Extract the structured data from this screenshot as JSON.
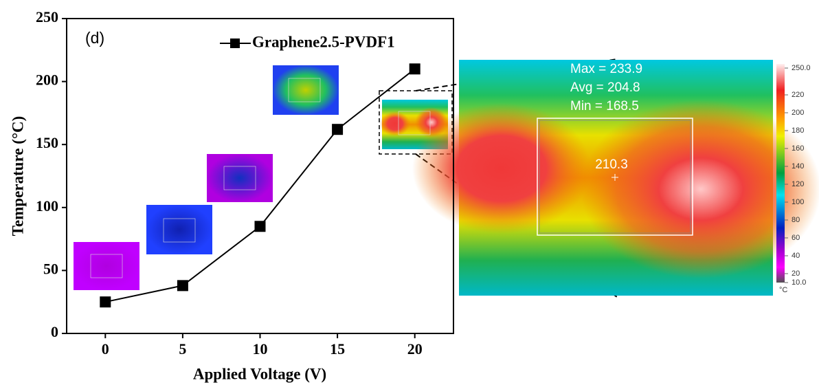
{
  "chart_data": {
    "type": "line",
    "annotation": "(d)",
    "xlabel": "Applied Voltage (V)",
    "ylabel": "Temperature (°C)",
    "x": [
      0,
      5,
      10,
      15,
      20
    ],
    "series": [
      {
        "name": "Graphene2.5-PVDF1",
        "color": "#000000",
        "values": [
          25,
          38,
          85,
          162,
          210
        ]
      }
    ],
    "xlim": [
      -2.5,
      22.5
    ],
    "xticks": [
      0,
      5,
      10,
      15,
      20
    ],
    "ylim": [
      0,
      250
    ],
    "yticks": [
      0,
      50,
      100,
      150,
      200,
      250
    ],
    "legend": "top-right",
    "thermal_image": {
      "stats": [
        "Max = 233.9",
        "Avg = 204.8",
        "Min = 168.5"
      ],
      "center_value": "210.3",
      "colorbar_lim": [
        10,
        250
      ],
      "colorbar_ticks": [
        {
          "value": 250,
          "label": "250.0"
        },
        220,
        200,
        180,
        160,
        140,
        120,
        100,
        80,
        60,
        40,
        20,
        {
          "value": 10,
          "label": "10.0"
        }
      ],
      "colorbar_unit": "°C"
    }
  }
}
